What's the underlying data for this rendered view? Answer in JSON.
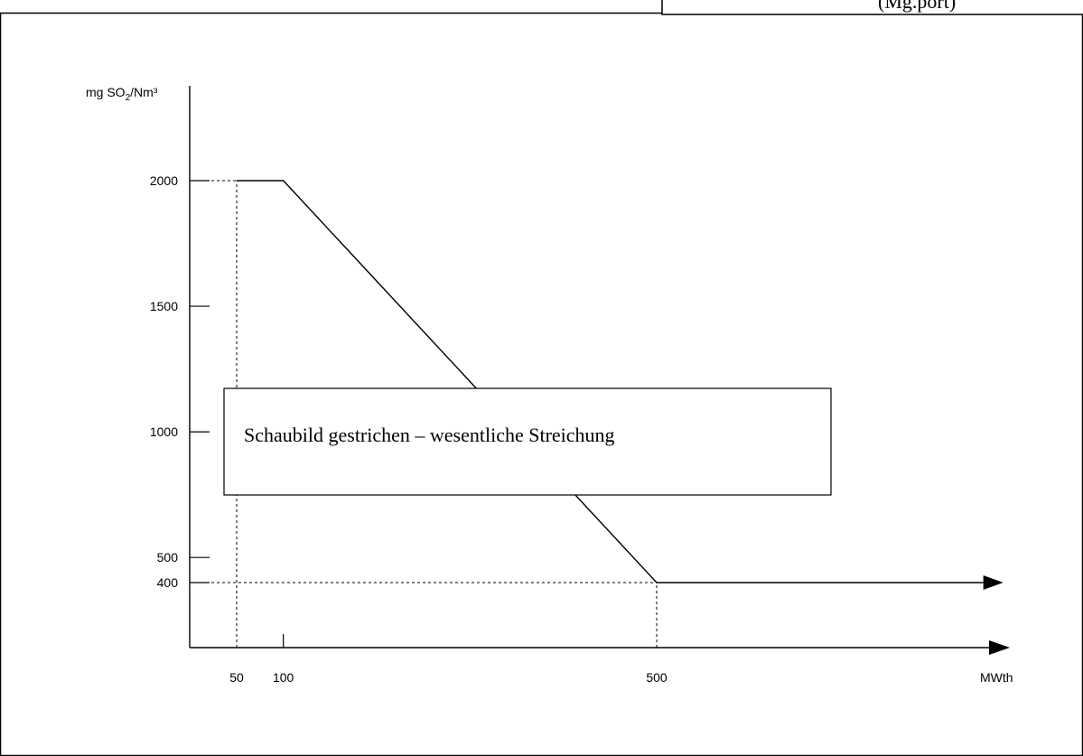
{
  "header_fragment": "(Mg.port)",
  "notice": "Schaubild gestrichen – wesentliche Streichung",
  "chart_data": {
    "type": "line",
    "title": "",
    "ylabel": "mg SO2/Nm³",
    "xlabel": "MWth",
    "xlim": [
      0,
      1000
    ],
    "ylim": [
      0,
      2800
    ],
    "x_ticks": [
      50,
      100,
      500
    ],
    "y_ticks": [
      400,
      500,
      1000,
      1500,
      2000
    ],
    "series": [
      {
        "values": [
          [
            50,
            2000
          ],
          [
            100,
            2000
          ],
          [
            500,
            400
          ],
          [
            850,
            400
          ]
        ]
      }
    ],
    "reference_lines": [
      {
        "from": [
          0,
          2000
        ],
        "to": [
          50,
          2000
        ]
      },
      {
        "from": [
          50,
          0
        ],
        "to": [
          50,
          2000
        ]
      },
      {
        "from": [
          0,
          400
        ],
        "to": [
          500,
          400
        ]
      },
      {
        "from": [
          500,
          0
        ],
        "to": [
          500,
          400
        ]
      }
    ],
    "grid": false
  }
}
